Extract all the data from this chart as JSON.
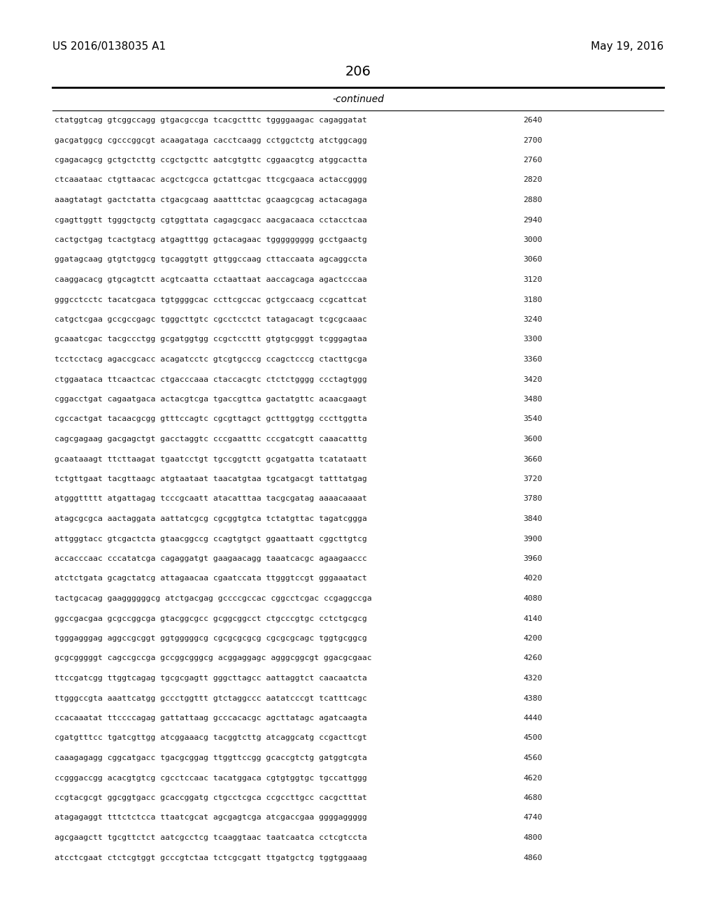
{
  "background_color": "#ffffff",
  "page_number": "206",
  "patent_number": "US 2016/0138035 A1",
  "date": "May 19, 2016",
  "continued_label": "-continued",
  "sequence_lines": [
    [
      "ctatggtcag gtcggccagg gtgacgccga tcacgctttc tggggaagac cagaggatat",
      "2640"
    ],
    [
      "gacgatggcg cgcccggcgt acaagataga cacctcaagg cctggctctg atctggcagg",
      "2700"
    ],
    [
      "cgagacagcg gctgctcttg ccgctgcttc aatcgtgttc cggaacgtcg atggcactta",
      "2760"
    ],
    [
      "ctcaaataac ctgttaacac acgctcgcca gctattcgac ttcgcgaaca actaccgggg",
      "2820"
    ],
    [
      "aaagtatagt gactctatta ctgacgcaag aaatttctac gcaagcgcag actacagaga",
      "2880"
    ],
    [
      "cgagttggtt tgggctgctg cgtggttata cagagcgacc aacgacaaca cctacctcaa",
      "2940"
    ],
    [
      "cactgctgag tcactgtacg atgagtttgg gctacagaac tggggggggg gcctgaactg",
      "3000"
    ],
    [
      "ggatagcaag gtgtctggcg tgcaggtgtt gttggccaag cttaccaata agcaggccta",
      "3060"
    ],
    [
      "caaggacacg gtgcagtctt acgtcaatta cctaattaat aaccagcaga agactcccaa",
      "3120"
    ],
    [
      "gggcctcctc tacatcgaca tgtggggcac ccttcgccac gctgccaacg ccgcattcat",
      "3180"
    ],
    [
      "catgctcgaa gccgccgagc tgggcttgtc cgcctcctct tatagacagt tcgcgcaaac",
      "3240"
    ],
    [
      "gcaaatcgac tacgccctgg gcgatggtgg ccgctccttt gtgtgcgggt tcgggagtaa",
      "3300"
    ],
    [
      "tcctcctacg agaccgcacc acagatcctc gtcgtgcccg ccagctcccg ctacttgcga",
      "3360"
    ],
    [
      "ctggaataca ttcaactcac ctgacccaaa ctaccacgtc ctctctgggg ccctagtggg",
      "3420"
    ],
    [
      "cggacctgat cagaatgaca actacgtcga tgaccgttca gactatgttc acaacgaagt",
      "3480"
    ],
    [
      "cgccactgat tacaacgcgg gtttccagtc cgcgttagct gctttggtgg cccttggtta",
      "3540"
    ],
    [
      "cagcgagaag gacgagctgt gacctaggtc cccgaatttc cccgatcgtt caaacatttg",
      "3600"
    ],
    [
      "gcaataaagt ttcttaagat tgaatcctgt tgccggtctt gcgatgatta tcatataatt",
      "3660"
    ],
    [
      "tctgttgaat tacgttaagc atgtaataat taacatgtaa tgcatgacgt tatttatgag",
      "3720"
    ],
    [
      "atgggttttt atgattagag tcccgcaatt atacatttaa tacgcgatag aaaacaaaat",
      "3780"
    ],
    [
      "atagcgcgca aactaggata aattatcgcg cgcggtgtca tctatgttac tagatcggga",
      "3840"
    ],
    [
      "attgggtacc gtcgactcta gtaacggccg ccagtgtgct ggaattaatt cggcttgtcg",
      "3900"
    ],
    [
      "accacccaac cccatatcga cagaggatgt gaagaacagg taaatcacgc agaagaaccc",
      "3960"
    ],
    [
      "atctctgata gcagctatcg attagaacaa cgaatccata ttgggtccgt gggaaatact",
      "4020"
    ],
    [
      "tactgcacag gaaggggggcg atctgacgag gccccgccac cggcctcgac ccgaggccga",
      "4080"
    ],
    [
      "ggccgacgaa gcgccggcga gtacggcgcc gcggcggcct ctgcccgtgc cctctgcgcg",
      "4140"
    ],
    [
      "tgggagggag aggccgcggt ggtgggggcg cgcgcgcgcg cgcgcgcagc tggtgcggcg",
      "4200"
    ],
    [
      "gcgcgggggt cagccgccga gccggcgggcg acggaggagc agggcggcgt ggacgcgaac",
      "4260"
    ],
    [
      "ttccgatcgg ttggtcagag tgcgcgagtt gggcttagcc aattaggtct caacaatcta",
      "4320"
    ],
    [
      "ttgggccgta aaattcatgg gccctggttt gtctaggccc aatatcccgt tcatttcagc",
      "4380"
    ],
    [
      "ccacaaatat ttccccagag gattattaag gcccacacgc agcttatagc agatcaagta",
      "4440"
    ],
    [
      "cgatgtttcc tgatcgttgg atcggaaacg tacggtcttg atcaggcatg ccgacttcgt",
      "4500"
    ],
    [
      "caaagagagg cggcatgacc tgacgcggag ttggttccgg gcaccgtctg gatggtcgta",
      "4560"
    ],
    [
      "ccgggaccgg acacgtgtcg cgcctccaac tacatggaca cgtgtggtgc tgccattggg",
      "4620"
    ],
    [
      "ccgtacgcgt ggcggtgacc gcaccggatg ctgcctcgca ccgccttgcc cacgctttat",
      "4680"
    ],
    [
      "atagagaggt tttctctcca ttaatcgcat agcgagtcga atcgaccgaa ggggaggggg",
      "4740"
    ],
    [
      "agcgaagctt tgcgttctct aatcgcctcg tcaaggtaac taatcaatca cctcgtccta",
      "4800"
    ],
    [
      "atcctcgaat ctctcgtggt gcccgtctaa tctcgcgatt ttgatgctcg tggtggaaag",
      "4860"
    ]
  ]
}
